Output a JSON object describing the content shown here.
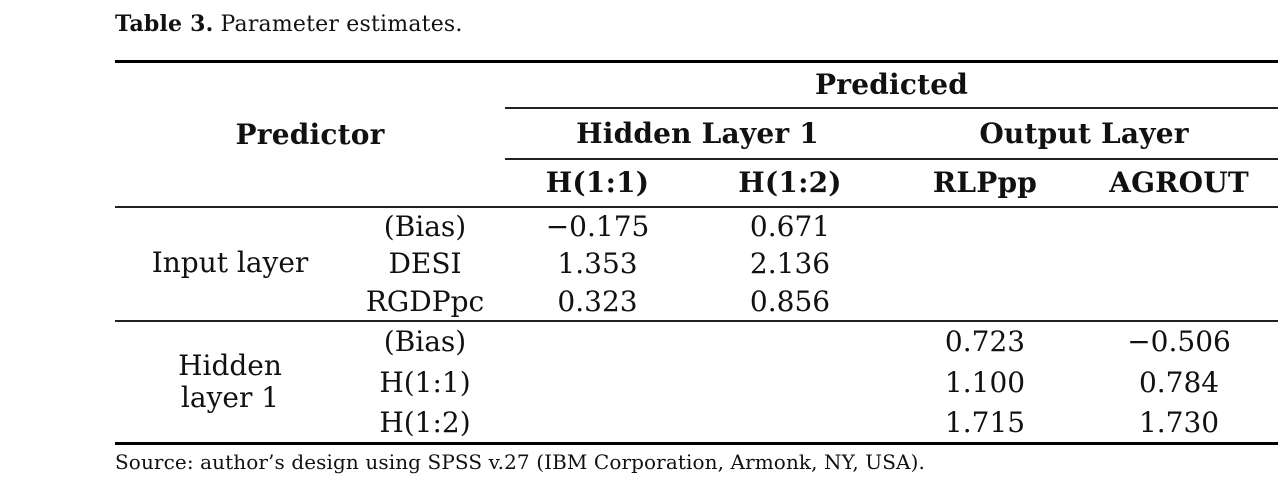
{
  "caption": {
    "label": "Table 3.",
    "text": "Parameter estimates."
  },
  "table": {
    "predictor_header": "Predictor",
    "predicted_header": "Predicted",
    "groups": [
      "Hidden Layer 1",
      "Output Layer"
    ],
    "columns": [
      "H(1:1)",
      "H(1:2)",
      "RLPpp",
      "AGROUT"
    ],
    "sections": [
      {
        "label": "Input layer",
        "rows": [
          {
            "predictor": "(Bias)",
            "values": [
              "−0.175",
              "0.671",
              "",
              ""
            ]
          },
          {
            "predictor": "DESI",
            "values": [
              "1.353",
              "2.136",
              "",
              ""
            ]
          },
          {
            "predictor": "RGDPpc",
            "values": [
              "0.323",
              "0.856",
              "",
              ""
            ]
          }
        ]
      },
      {
        "label": "Hidden layer 1",
        "rows": [
          {
            "predictor": "(Bias)",
            "values": [
              "",
              "",
              "0.723",
              "−0.506"
            ]
          },
          {
            "predictor": "H(1:1)",
            "values": [
              "",
              "",
              "1.100",
              "0.784"
            ]
          },
          {
            "predictor": "H(1:2)",
            "values": [
              "",
              "",
              "1.715",
              "1.730"
            ]
          }
        ]
      }
    ]
  },
  "source_note": "Source: author’s design using SPSS v.27 (IBM Corporation, Armonk, NY, USA)."
}
